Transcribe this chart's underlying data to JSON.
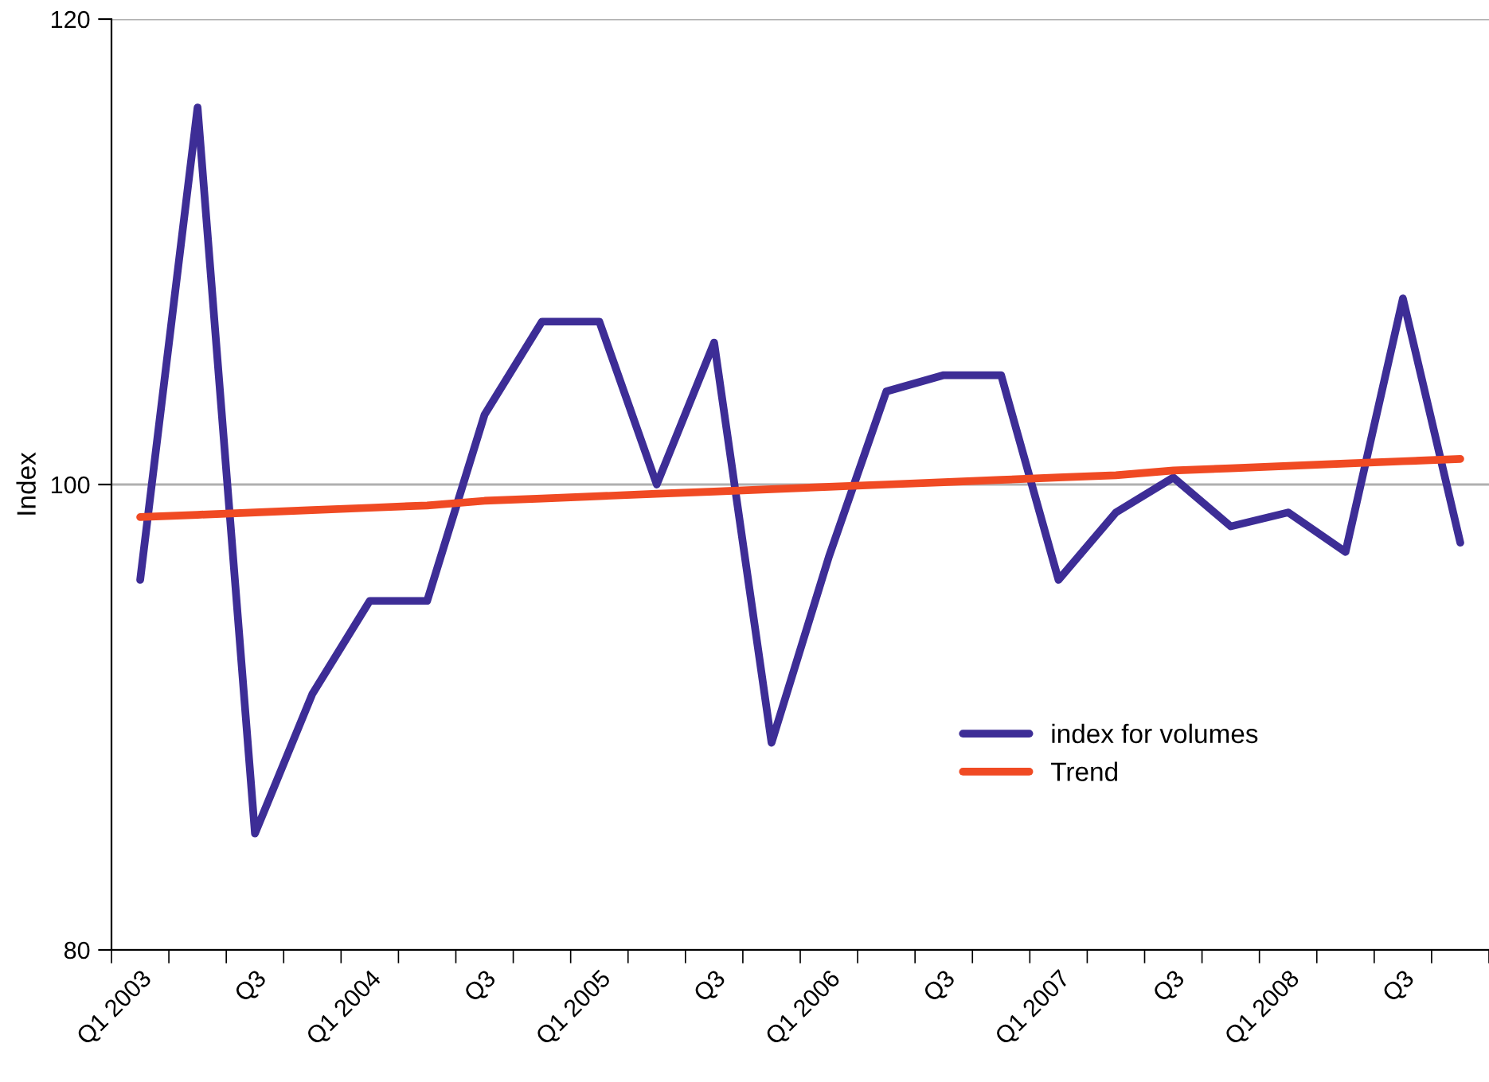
{
  "chart_data": {
    "type": "line",
    "ylabel": "Index",
    "categories": [
      "Q1 2003",
      null,
      "Q3",
      null,
      "Q1 2004",
      null,
      "Q3",
      null,
      "Q1 2005",
      null,
      "Q3",
      null,
      "Q1 2006",
      null,
      "Q3",
      null,
      "Q1 2007",
      null,
      "Q3",
      null,
      "Q1 2008",
      null,
      "Q3",
      null
    ],
    "series": [
      {
        "name": "index for volumes",
        "color": "#3d2d96",
        "values": [
          95.9,
          116.2,
          85.0,
          91.0,
          95.0,
          95.0,
          103.0,
          107.0,
          107.0,
          100.0,
          106.1,
          88.9,
          96.9,
          104.0,
          104.7,
          104.7,
          95.9,
          98.8,
          100.3,
          98.2,
          98.8,
          97.1,
          108.0,
          97.5
        ]
      },
      {
        "name": "Trend",
        "color": "#f04a23",
        "values": [
          98.6,
          98.7,
          98.8,
          98.9,
          99.0,
          99.1,
          99.3,
          99.4,
          99.5,
          99.6,
          99.7,
          99.8,
          99.9,
          100.0,
          100.1,
          100.2,
          100.3,
          100.4,
          100.6,
          100.7,
          100.8,
          100.9,
          101.0,
          101.1
        ]
      }
    ],
    "ylim": [
      80,
      120
    ],
    "yticks": [
      80,
      100,
      120
    ],
    "grid": "y",
    "legend": "lower right",
    "marker": "none",
    "line_style": "solid"
  }
}
